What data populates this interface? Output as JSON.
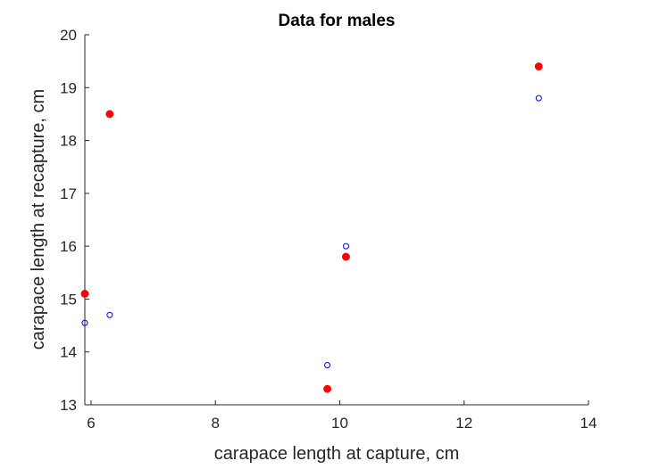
{
  "chart_data": {
    "type": "scatter",
    "title": "Data for males",
    "xlabel": "carapace length at capture, cm",
    "ylabel": "carapace length at recapture, cm",
    "xlim": [
      5.9,
      14
    ],
    "ylim": [
      13,
      20
    ],
    "x_ticks": [
      6,
      8,
      10,
      12,
      14
    ],
    "y_ticks": [
      13,
      14,
      15,
      16,
      17,
      18,
      19,
      20
    ],
    "grid": false,
    "legend": "none",
    "series": [
      {
        "marker": "filled-circle",
        "color": "#ff0000",
        "points": [
          {
            "x": 5.9,
            "y": 15.1
          },
          {
            "x": 6.3,
            "y": 18.5
          },
          {
            "x": 9.8,
            "y": 13.3
          },
          {
            "x": 10.1,
            "y": 15.8
          },
          {
            "x": 13.2,
            "y": 19.4
          }
        ]
      },
      {
        "marker": "open-circle",
        "color": "#0000ff",
        "points": [
          {
            "x": 5.9,
            "y": 14.55
          },
          {
            "x": 6.3,
            "y": 14.7
          },
          {
            "x": 9.8,
            "y": 13.75
          },
          {
            "x": 10.1,
            "y": 16.0
          },
          {
            "x": 13.2,
            "y": 18.8
          }
        ]
      }
    ]
  }
}
